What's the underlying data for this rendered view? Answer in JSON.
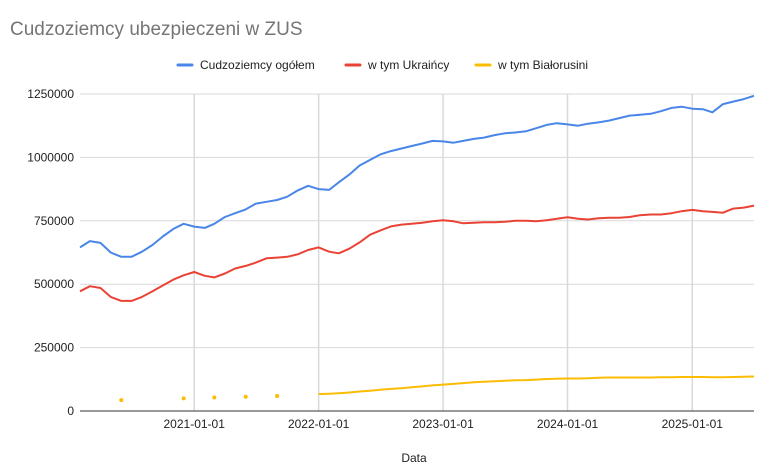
{
  "chart_data": {
    "type": "line",
    "title": "Cudzoziemcy ubezpieczeni w ZUS",
    "xlabel": "Data",
    "ylabel": "",
    "ylim": [
      0,
      1250000
    ],
    "xlim": [
      "2020-02-01",
      "2025-07-01"
    ],
    "grid": true,
    "legend_position": "top",
    "y_ticks": [
      {
        "value": 0,
        "label": "0"
      },
      {
        "value": 250000,
        "label": "250000"
      },
      {
        "value": 500000,
        "label": "500000"
      },
      {
        "value": 750000,
        "label": "750000"
      },
      {
        "value": 1000000,
        "label": "1000000"
      },
      {
        "value": 1250000,
        "label": "1250000"
      }
    ],
    "x_ticks": [
      {
        "value": "2021-01-01",
        "label": "2021-01-01"
      },
      {
        "value": "2022-01-01",
        "label": "2022-01-01"
      },
      {
        "value": "2023-01-01",
        "label": "2023-01-01"
      },
      {
        "value": "2024-01-01",
        "label": "2024-01-01"
      },
      {
        "value": "2025-01-01",
        "label": "2025-01-01"
      }
    ],
    "series": [
      {
        "name": "Cudzoziemcy ogółem",
        "color": "#4a86e8",
        "style": "line",
        "x": [
          "2020-02-01",
          "2020-03-01",
          "2020-04-01",
          "2020-05-01",
          "2020-06-01",
          "2020-07-01",
          "2020-08-01",
          "2020-09-01",
          "2020-10-01",
          "2020-11-01",
          "2020-12-01",
          "2021-01-01",
          "2021-02-01",
          "2021-03-01",
          "2021-04-01",
          "2021-05-01",
          "2021-06-01",
          "2021-07-01",
          "2021-08-01",
          "2021-09-01",
          "2021-10-01",
          "2021-11-01",
          "2021-12-01",
          "2022-01-01",
          "2022-02-01",
          "2022-03-01",
          "2022-04-01",
          "2022-05-01",
          "2022-06-01",
          "2022-07-01",
          "2022-08-01",
          "2022-09-01",
          "2022-10-01",
          "2022-11-01",
          "2022-12-01",
          "2023-01-01",
          "2023-02-01",
          "2023-03-01",
          "2023-04-01",
          "2023-05-01",
          "2023-06-01",
          "2023-07-01",
          "2023-08-01",
          "2023-09-01",
          "2023-10-01",
          "2023-11-01",
          "2023-12-01",
          "2024-01-01",
          "2024-02-01",
          "2024-03-01",
          "2024-04-01",
          "2024-05-01",
          "2024-06-01",
          "2024-07-01",
          "2024-08-01",
          "2024-09-01",
          "2024-10-01",
          "2024-11-01",
          "2024-12-01",
          "2025-01-01",
          "2025-02-01",
          "2025-03-01",
          "2025-04-01",
          "2025-05-01",
          "2025-06-01",
          "2025-07-01"
        ],
        "values": [
          645000,
          670000,
          663000,
          625000,
          608000,
          608000,
          628000,
          655000,
          688000,
          718000,
          738000,
          727000,
          722000,
          738000,
          765000,
          780000,
          795000,
          818000,
          825000,
          832000,
          845000,
          870000,
          888000,
          875000,
          872000,
          902000,
          932000,
          968000,
          990000,
          1012000,
          1025000,
          1035000,
          1045000,
          1055000,
          1065000,
          1063000,
          1058000,
          1065000,
          1073000,
          1078000,
          1088000,
          1095000,
          1098000,
          1103000,
          1115000,
          1128000,
          1135000,
          1130000,
          1125000,
          1133000,
          1138000,
          1145000,
          1155000,
          1165000,
          1168000,
          1172000,
          1182000,
          1195000,
          1200000,
          1192000,
          1190000,
          1178000,
          1210000,
          1220000,
          1230000,
          1243000
        ]
      },
      {
        "name": "w tym Ukraińcy",
        "color": "#ea4335",
        "style": "line",
        "x": [
          "2020-02-01",
          "2020-03-01",
          "2020-04-01",
          "2020-05-01",
          "2020-06-01",
          "2020-07-01",
          "2020-08-01",
          "2020-09-01",
          "2020-10-01",
          "2020-11-01",
          "2020-12-01",
          "2021-01-01",
          "2021-02-01",
          "2021-03-01",
          "2021-04-01",
          "2021-05-01",
          "2021-06-01",
          "2021-07-01",
          "2021-08-01",
          "2021-09-01",
          "2021-10-01",
          "2021-11-01",
          "2021-12-01",
          "2022-01-01",
          "2022-02-01",
          "2022-03-01",
          "2022-04-01",
          "2022-05-01",
          "2022-06-01",
          "2022-07-01",
          "2022-08-01",
          "2022-09-01",
          "2022-10-01",
          "2022-11-01",
          "2022-12-01",
          "2023-01-01",
          "2023-02-01",
          "2023-03-01",
          "2023-04-01",
          "2023-05-01",
          "2023-06-01",
          "2023-07-01",
          "2023-08-01",
          "2023-09-01",
          "2023-10-01",
          "2023-11-01",
          "2023-12-01",
          "2024-01-01",
          "2024-02-01",
          "2024-03-01",
          "2024-04-01",
          "2024-05-01",
          "2024-06-01",
          "2024-07-01",
          "2024-08-01",
          "2024-09-01",
          "2024-10-01",
          "2024-11-01",
          "2024-12-01",
          "2025-01-01",
          "2025-02-01",
          "2025-03-01",
          "2025-04-01",
          "2025-05-01",
          "2025-06-01",
          "2025-07-01"
        ],
        "values": [
          472000,
          492000,
          485000,
          450000,
          434000,
          434000,
          450000,
          472000,
          495000,
          518000,
          535000,
          548000,
          533000,
          527000,
          542000,
          562000,
          572000,
          585000,
          602000,
          605000,
          608000,
          618000,
          635000,
          645000,
          628000,
          622000,
          640000,
          665000,
          695000,
          712000,
          728000,
          735000,
          738000,
          742000,
          748000,
          752000,
          748000,
          740000,
          742000,
          744000,
          744000,
          746000,
          750000,
          750000,
          748000,
          752000,
          758000,
          764000,
          758000,
          755000,
          760000,
          762000,
          762000,
          765000,
          772000,
          775000,
          775000,
          780000,
          788000,
          793000,
          788000,
          785000,
          782000,
          798000,
          802000,
          810000
        ]
      },
      {
        "name": "w tym Białorusini",
        "color": "#fbbc04",
        "style": "line",
        "x": [
          "2020-06-01",
          "2020-12-01",
          "2021-03-01",
          "2021-06-01",
          "2021-09-01",
          "2021-12-01",
          "2022-01-01",
          "2022-02-01",
          "2022-03-01",
          "2022-04-01",
          "2022-05-01",
          "2022-06-01",
          "2022-07-01",
          "2022-08-01",
          "2022-09-01",
          "2022-10-01",
          "2022-11-01",
          "2022-12-01",
          "2023-01-01",
          "2023-02-01",
          "2023-03-01",
          "2023-04-01",
          "2023-05-01",
          "2023-06-01",
          "2023-07-01",
          "2023-08-01",
          "2023-09-01",
          "2023-10-01",
          "2023-11-01",
          "2023-12-01",
          "2024-01-01",
          "2024-02-01",
          "2024-03-01",
          "2024-04-01",
          "2024-05-01",
          "2024-06-01",
          "2024-07-01",
          "2024-08-01",
          "2024-09-01",
          "2024-10-01",
          "2024-11-01",
          "2024-12-01",
          "2025-01-01",
          "2025-02-01",
          "2025-03-01",
          "2025-04-01",
          "2025-05-01",
          "2025-06-01",
          "2025-07-01"
        ],
        "values": [
          43000,
          50000,
          53000,
          56000,
          59000,
          null,
          67000,
          68000,
          70000,
          73000,
          77000,
          80000,
          84000,
          87000,
          90000,
          94000,
          97000,
          101000,
          104000,
          107000,
          110000,
          113000,
          115000,
          117000,
          119000,
          121000,
          122000,
          124000,
          126000,
          127000,
          128000,
          128000,
          129000,
          131000,
          132000,
          132000,
          132000,
          132000,
          132000,
          133000,
          133000,
          134000,
          134000,
          134000,
          133000,
          133000,
          134000,
          135000,
          136000
        ]
      }
    ]
  }
}
